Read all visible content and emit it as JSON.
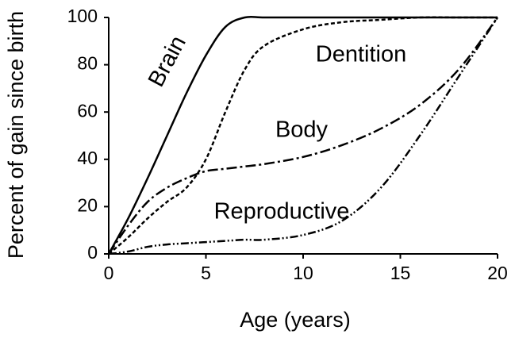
{
  "chart_data": {
    "type": "line",
    "xlabel": "Age (years)",
    "ylabel": "Percent of gain since birth",
    "x": [
      0,
      1,
      2,
      3,
      4,
      5,
      6,
      7,
      8,
      10,
      12,
      14,
      16,
      18,
      20
    ],
    "series": [
      {
        "name": "Brain",
        "color": "#000000",
        "style": "solid",
        "values": [
          0,
          15,
          32,
          50,
          68,
          84,
          96,
          100,
          100,
          100,
          100,
          100,
          100,
          100,
          100
        ]
      },
      {
        "name": "Dentition",
        "color": "#000000",
        "style": "dashed",
        "values": [
          0,
          7,
          15,
          22,
          28,
          40,
          60,
          78,
          88,
          95,
          98,
          99,
          100,
          100,
          100
        ]
      },
      {
        "name": "Body",
        "color": "#000000",
        "style": "dashdot",
        "values": [
          0,
          12,
          22,
          28,
          32,
          35,
          36,
          37,
          38,
          41,
          46,
          53,
          63,
          78,
          100
        ]
      },
      {
        "name": "Reproductive",
        "color": "#000000",
        "style": "dashdotdot",
        "values": [
          0,
          1,
          3,
          4,
          4.5,
          5,
          5.5,
          6,
          6,
          8,
          14,
          28,
          50,
          75,
          100
        ]
      }
    ],
    "xlim": [
      0,
      20
    ],
    "xticks": [
      0,
      5,
      10,
      15,
      20
    ],
    "ylim": [
      0,
      100
    ],
    "yticks": [
      0,
      20,
      40,
      60,
      80,
      100
    ],
    "grid": false
  }
}
